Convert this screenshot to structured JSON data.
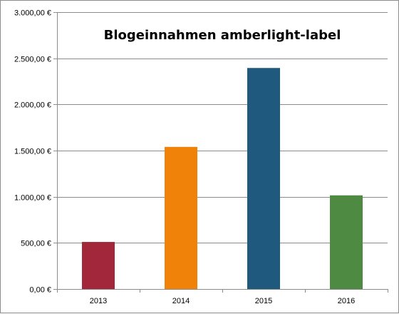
{
  "chart_data": {
    "type": "bar",
    "title": "Blogeinnahmen amberlight-label",
    "xlabel": "",
    "ylabel": "",
    "categories": [
      "2013",
      "2014",
      "2015",
      "2016"
    ],
    "values": [
      510,
      1540,
      2395,
      1015
    ],
    "bar_colors": [
      "#a3273a",
      "#f0820a",
      "#1f5a7e",
      "#4f8a42"
    ],
    "ylim": [
      0,
      3000
    ],
    "y_ticks": [
      0,
      500,
      1000,
      1500,
      2000,
      2500,
      3000
    ],
    "y_tick_labels": [
      "0,00 €",
      "500,00 €",
      "1.000,00 €",
      "1.500,00 €",
      "2.000,00 €",
      "2.500,00 €",
      "3.000,00 €"
    ],
    "grid": true,
    "legend": "none"
  },
  "colors": {
    "gridline": "#8c8c8c",
    "axis": "#8c8c8c",
    "text": "#000000"
  }
}
